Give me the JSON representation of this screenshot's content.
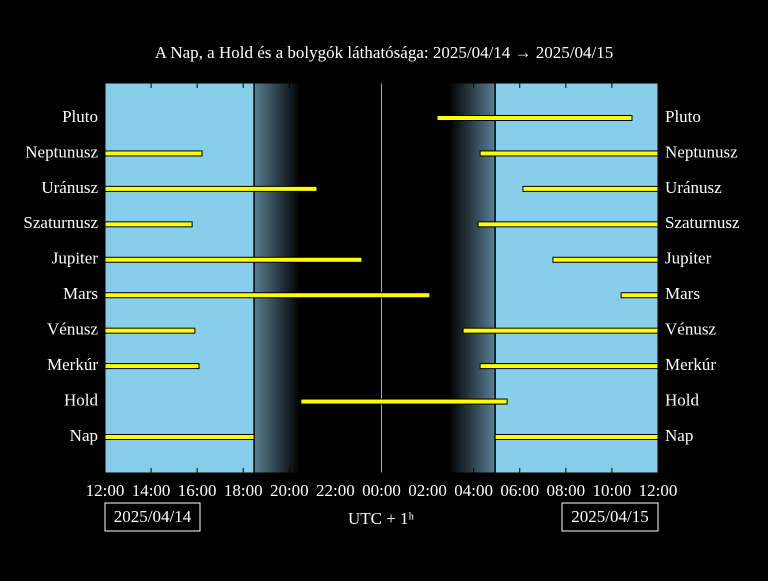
{
  "chart_data": {
    "type": "visibility",
    "title": "A Nap, a Hold és a bolygók láthatósága: 2025/04/14 → 2025/04/15",
    "xlabel": "UTC + 1ʰ",
    "date_left": "2025/04/14",
    "date_right": "2025/04/15",
    "xlim": [
      12,
      36
    ],
    "xticks": [
      {
        "value": 12,
        "label": "12:00"
      },
      {
        "value": 14,
        "label": "14:00"
      },
      {
        "value": 16,
        "label": "16:00"
      },
      {
        "value": 18,
        "label": "18:00"
      },
      {
        "value": 20,
        "label": "20:00"
      },
      {
        "value": 22,
        "label": "22:00"
      },
      {
        "value": 24,
        "label": "00:00"
      },
      {
        "value": 26,
        "label": "02:00"
      },
      {
        "value": 28,
        "label": "04:00"
      },
      {
        "value": 30,
        "label": "06:00"
      },
      {
        "value": 32,
        "label": "08:00"
      },
      {
        "value": 34,
        "label": "10:00"
      },
      {
        "value": 36,
        "label": "12:00"
      }
    ],
    "day_color": "#87ceeb",
    "bar_color": "#ffff00",
    "rows": [
      {
        "name": "Pluto",
        "intervals": [
          [
            26.41,
            34.87
          ]
        ]
      },
      {
        "name": "Neptunusz",
        "intervals": [
          [
            12,
            16.21
          ],
          [
            28.28,
            36
          ]
        ]
      },
      {
        "name": "Uránusz",
        "intervals": [
          [
            12,
            21.2
          ],
          [
            30.14,
            36
          ]
        ]
      },
      {
        "name": "Szaturnusz",
        "intervals": [
          [
            12,
            15.78
          ],
          [
            28.19,
            36
          ]
        ]
      },
      {
        "name": "Jupiter",
        "intervals": [
          [
            12,
            23.15
          ],
          [
            31.44,
            36
          ]
        ]
      },
      {
        "name": "Mars",
        "intervals": [
          [
            12,
            26.1
          ],
          [
            34.4,
            36
          ]
        ]
      },
      {
        "name": "Vénusz",
        "intervals": [
          [
            12,
            15.9
          ],
          [
            27.54,
            36
          ]
        ]
      },
      {
        "name": "Merkúr",
        "intervals": [
          [
            12,
            16.08
          ],
          [
            28.28,
            36
          ]
        ]
      },
      {
        "name": "Hold",
        "intervals": [
          [
            20.5,
            29.45
          ]
        ]
      },
      {
        "name": "Nap",
        "intervals": [
          [
            12,
            18.47
          ],
          [
            28.93,
            36
          ]
        ]
      }
    ]
  }
}
